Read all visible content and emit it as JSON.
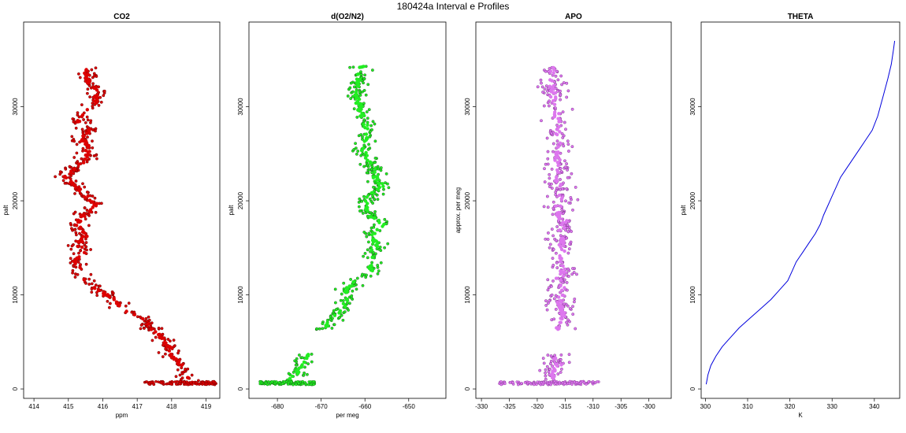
{
  "figure": {
    "title": "180424a   Interval e Profiles"
  },
  "chart_data": [
    {
      "type": "scatter",
      "title": "CO2",
      "xlabel": "ppm",
      "ylabel": "palt",
      "xlim": [
        413.7,
        419.4
      ],
      "ylim": [
        -1000,
        39000
      ],
      "xticks": [
        414,
        415,
        416,
        417,
        418,
        419
      ],
      "yticks": [
        0,
        10000,
        20000,
        30000
      ],
      "ytick_labels": [
        "0",
        "10000",
        "20000",
        "30000"
      ],
      "grid": false,
      "marker": "circle",
      "color": "#dd0000",
      "edge_color": "#550000",
      "profile": [
        [
          418.6,
          600
        ],
        [
          418.4,
          1500
        ],
        [
          418.3,
          2500
        ],
        [
          418.0,
          3500
        ],
        [
          417.9,
          4500
        ],
        [
          417.7,
          5500
        ],
        [
          417.4,
          6500
        ],
        [
          417.1,
          7500
        ],
        [
          416.6,
          8500
        ],
        [
          416.3,
          9500
        ],
        [
          415.9,
          10500
        ],
        [
          415.5,
          11500
        ],
        [
          415.3,
          12500
        ],
        [
          415.2,
          13500
        ],
        [
          415.4,
          14500
        ],
        [
          415.3,
          15500
        ],
        [
          415.5,
          16500
        ],
        [
          415.2,
          17500
        ],
        [
          415.5,
          18500
        ],
        [
          415.8,
          19500
        ],
        [
          415.5,
          20500
        ],
        [
          415.2,
          21500
        ],
        [
          414.9,
          22500
        ],
        [
          415.2,
          23500
        ],
        [
          415.5,
          24500
        ],
        [
          415.6,
          25500
        ],
        [
          415.4,
          26500
        ],
        [
          415.6,
          27500
        ],
        [
          415.3,
          28500
        ],
        [
          415.5,
          29500
        ],
        [
          415.8,
          30500
        ],
        [
          415.9,
          31500
        ],
        [
          415.6,
          32500
        ],
        [
          415.5,
          33500
        ],
        [
          415.6,
          34300
        ]
      ],
      "spread": 0.45,
      "surface_band": {
        "x": [
          417.2,
          419.3
        ],
        "y": [
          450,
          800
        ]
      }
    },
    {
      "type": "scatter",
      "title": "d(O2/N2)",
      "xlabel": "per meg",
      "ylabel": "palt",
      "xlim": [
        -686.5,
        -641.5
      ],
      "ylim": [
        -1000,
        39000
      ],
      "xticks": [
        -680,
        -670,
        -660,
        -650
      ],
      "yticks": [
        0,
        10000,
        20000,
        30000
      ],
      "ytick_labels": [
        "0",
        "10000",
        "20000",
        "30000"
      ],
      "grid": false,
      "marker": "circle",
      "color": "#22ee22",
      "edge_color": "#114411",
      "profile": [
        [
          -677.5,
          600
        ],
        [
          -676.0,
          1500
        ],
        [
          -674.5,
          2500
        ],
        [
          -673.0,
          3500
        ],
        [
          -669.5,
          6500
        ],
        [
          -667.0,
          7500
        ],
        [
          -665.0,
          8500
        ],
        [
          -664.0,
          9500
        ],
        [
          -664.5,
          10500
        ],
        [
          -662.0,
          11500
        ],
        [
          -658.5,
          12500
        ],
        [
          -658.5,
          13500
        ],
        [
          -658.0,
          14500
        ],
        [
          -657.5,
          15500
        ],
        [
          -658.5,
          16500
        ],
        [
          -656.0,
          17500
        ],
        [
          -659.0,
          18500
        ],
        [
          -660.0,
          19500
        ],
        [
          -659.0,
          20500
        ],
        [
          -656.0,
          21500
        ],
        [
          -657.5,
          22500
        ],
        [
          -658.0,
          23500
        ],
        [
          -659.5,
          24500
        ],
        [
          -660.5,
          25500
        ],
        [
          -659.5,
          26500
        ],
        [
          -659.5,
          27500
        ],
        [
          -660.0,
          28500
        ],
        [
          -661.0,
          29500
        ],
        [
          -661.5,
          30500
        ],
        [
          -662.0,
          31500
        ],
        [
          -661.5,
          32500
        ],
        [
          -661.5,
          33500
        ],
        [
          -660.5,
          34300
        ]
      ],
      "spread": 3.4,
      "surface_band": {
        "x": [
          -684.0,
          -671.5
        ],
        "y": [
          450,
          800
        ]
      }
    },
    {
      "type": "scatter",
      "title": "APO",
      "xlabel": "",
      "ylabel": "approx. per meg",
      "xlim": [
        -331.0,
        -296.0
      ],
      "ylim": [
        -1000,
        39000
      ],
      "xticks": [
        -330,
        -325,
        -320,
        -315,
        -310,
        -305,
        -300
      ],
      "yticks": [
        0,
        10000,
        20000,
        30000
      ],
      "ytick_labels": [
        "0",
        "10000",
        "20000",
        "30000"
      ],
      "grid": false,
      "marker": "circle",
      "color": "#dd77ee",
      "edge_color": "#662277",
      "profile": [
        [
          -317.0,
          600
        ],
        [
          -317.5,
          1500
        ],
        [
          -316.5,
          2500
        ],
        [
          -316.5,
          3500
        ],
        [
          -316.0,
          6500
        ],
        [
          -315.5,
          7500
        ],
        [
          -315.5,
          8500
        ],
        [
          -316.0,
          9500
        ],
        [
          -315.5,
          10500
        ],
        [
          -316.0,
          11500
        ],
        [
          -315.5,
          12500
        ],
        [
          -316.0,
          13500
        ],
        [
          -315.5,
          14500
        ],
        [
          -315.5,
          15500
        ],
        [
          -316.0,
          16500
        ],
        [
          -315.0,
          17500
        ],
        [
          -316.0,
          18500
        ],
        [
          -316.0,
          19500
        ],
        [
          -315.5,
          20500
        ],
        [
          -316.0,
          21500
        ],
        [
          -316.5,
          22500
        ],
        [
          -316.0,
          23500
        ],
        [
          -316.5,
          24500
        ],
        [
          -316.0,
          25500
        ],
        [
          -316.5,
          26500
        ],
        [
          -316.5,
          27500
        ],
        [
          -316.5,
          28500
        ],
        [
          -316.5,
          29500
        ],
        [
          -317.0,
          30500
        ],
        [
          -317.0,
          31500
        ],
        [
          -317.5,
          32500
        ],
        [
          -317.5,
          33500
        ],
        [
          -317.0,
          34300
        ]
      ],
      "spread": 3.6,
      "surface_band": {
        "x": [
          -327.0,
          -309.0
        ],
        "y": [
          450,
          800
        ]
      }
    },
    {
      "type": "line",
      "title": "THETA",
      "xlabel": "K",
      "ylabel": "palt",
      "xlim": [
        299.0,
        346.0
      ],
      "ylim": [
        -1000,
        39000
      ],
      "xticks": [
        300,
        310,
        320,
        330,
        340
      ],
      "yticks": [
        0,
        10000,
        20000,
        30000
      ],
      "ytick_labels": [
        "0",
        "10000",
        "20000",
        "30000"
      ],
      "grid": false,
      "color": "#0000dd",
      "x": [
        300.2,
        300.6,
        301.3,
        302.5,
        304.0,
        306.0,
        308.0,
        310.5,
        313.0,
        315.5,
        317.5,
        319.5,
        320.5,
        321.5,
        323.0,
        324.5,
        326.0,
        327.2,
        328.0,
        329.0,
        330.0,
        331.0,
        332.0,
        333.5,
        335.0,
        336.5,
        338.0,
        339.5,
        340.8,
        342.0,
        343.2,
        344.0,
        344.5,
        344.8
      ],
      "y": [
        500,
        1500,
        2500,
        3500,
        4500,
        5500,
        6500,
        7500,
        8500,
        9500,
        10500,
        11500,
        12500,
        13500,
        14500,
        15500,
        16500,
        17500,
        18500,
        19500,
        20500,
        21500,
        22500,
        23500,
        24500,
        25500,
        26500,
        27500,
        29000,
        31000,
        33000,
        34500,
        36000,
        37000
      ]
    }
  ]
}
